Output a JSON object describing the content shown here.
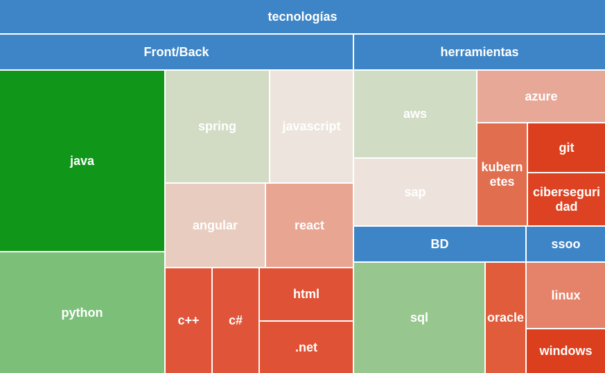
{
  "title": "tecnologías",
  "groups": [
    {
      "label": "Front/Back",
      "items": [
        "java",
        "python",
        "spring",
        "javascript",
        "angular",
        "react",
        "c++",
        "c#",
        "html",
        ".net"
      ]
    },
    {
      "label": "herramientas",
      "items": [
        "aws",
        "sap",
        "azure",
        "kubernetes",
        "git",
        "ciberseguridad"
      ]
    },
    {
      "label": "BD",
      "items": [
        "sql",
        "oracle"
      ]
    },
    {
      "label": "ssoo",
      "items": [
        "linux",
        "windows"
      ]
    }
  ]
}
